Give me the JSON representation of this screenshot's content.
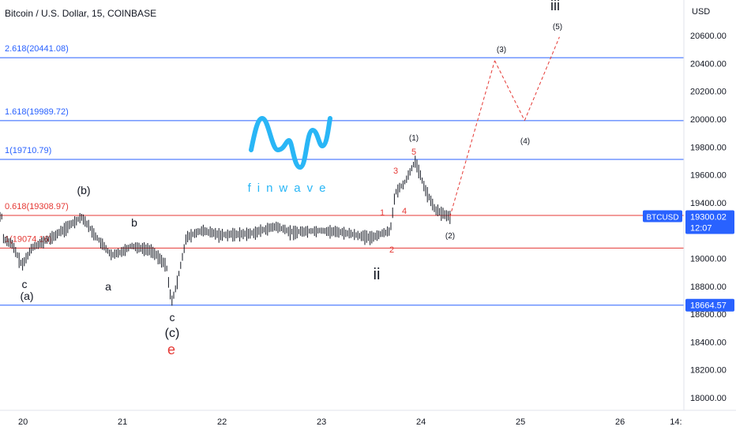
{
  "header": {
    "title": "Bitcoin / U.S. Dollar, 15, COINBASE"
  },
  "axis": {
    "currency": "USD",
    "y_ticks": [
      "20600.00",
      "20400.00",
      "20200.00",
      "20000.00",
      "19800.00",
      "19600.00",
      "19400.00",
      "19000.00",
      "18800.00",
      "18600.00",
      "18400.00",
      "18200.00",
      "18000.00"
    ],
    "x_ticks": [
      "20",
      "21",
      "22",
      "23",
      "24",
      "25",
      "26",
      "14:"
    ]
  },
  "price_tag": {
    "symbol": "BTCUSD",
    "price": "19300.02",
    "countdown": "12:07"
  },
  "level_tag": {
    "value": "18664.57"
  },
  "fib_levels": [
    {
      "label": "2.618(20441.08)",
      "value": 20441.08,
      "color": "#2962ff"
    },
    {
      "label": "1.618(19989.72)",
      "value": 19989.72,
      "color": "#2962ff"
    },
    {
      "label": "1(19710.79)",
      "value": 19710.79,
      "color": "#2962ff"
    },
    {
      "label": "0.618(19308.97)",
      "value": 19308.97,
      "color": "#e53935"
    },
    {
      "label": "1(19074.16)",
      "value": 19074.16,
      "color": "#e53935"
    }
  ],
  "wave_labels": {
    "b_paren": "(b)",
    "b": "b",
    "a": "a",
    "c_left": "c",
    "a_paren": "(a)",
    "c_mid": "c",
    "c_paren": "(c)",
    "e": "e",
    "ii": "ii",
    "iii": "iii",
    "w1_paren": "(1)",
    "w2_paren": "(2)",
    "w3_paren": "(3)",
    "w4_paren": "(4)",
    "w5_paren": "(5)",
    "n1": "1",
    "n2": "2",
    "n3": "3",
    "n4": "4",
    "n5": "5"
  },
  "logo": {
    "text": "finwave"
  },
  "colors": {
    "blue": "#2962ff",
    "red": "#e53935",
    "candle": "#131722",
    "projection": "#e53935"
  },
  "chart_data": {
    "type": "line",
    "title": "Bitcoin / U.S. Dollar, 15, COINBASE",
    "xlabel": "",
    "ylabel": "USD",
    "ylim": [
      17900,
      20900
    ],
    "x_range_days": [
      19.8,
      26.55
    ],
    "series": [
      {
        "values": [
          {
            "x": 19.8,
            "y": 19150
          },
          {
            "x": 19.9,
            "y": 19100
          },
          {
            "x": 20.0,
            "y": 18950
          },
          {
            "x": 20.1,
            "y": 19080
          },
          {
            "x": 20.3,
            "y": 19150
          },
          {
            "x": 20.5,
            "y": 19250
          },
          {
            "x": 20.6,
            "y": 19300
          },
          {
            "x": 20.75,
            "y": 19150
          },
          {
            "x": 20.9,
            "y": 19020
          },
          {
            "x": 21.0,
            "y": 19050
          },
          {
            "x": 21.1,
            "y": 19090
          },
          {
            "x": 21.3,
            "y": 19060
          },
          {
            "x": 21.45,
            "y": 18950
          },
          {
            "x": 21.5,
            "y": 18680
          },
          {
            "x": 21.55,
            "y": 18800
          },
          {
            "x": 21.65,
            "y": 19150
          },
          {
            "x": 21.8,
            "y": 19200
          },
          {
            "x": 22.0,
            "y": 19170
          },
          {
            "x": 22.3,
            "y": 19180
          },
          {
            "x": 22.55,
            "y": 19230
          },
          {
            "x": 22.7,
            "y": 19190
          },
          {
            "x": 23.0,
            "y": 19200
          },
          {
            "x": 23.2,
            "y": 19190
          },
          {
            "x": 23.5,
            "y": 19150
          },
          {
            "x": 23.7,
            "y": 19200
          },
          {
            "x": 23.75,
            "y": 19470
          },
          {
            "x": 23.85,
            "y": 19550
          },
          {
            "x": 23.95,
            "y": 19700
          },
          {
            "x": 24.05,
            "y": 19500
          },
          {
            "x": 24.15,
            "y": 19350
          },
          {
            "x": 24.3,
            "y": 19300
          }
        ]
      },
      {
        "name": "projection",
        "values": [
          {
            "x": 24.3,
            "y": 19300
          },
          {
            "x": 24.75,
            "y": 20420
          },
          {
            "x": 25.05,
            "y": 19990
          },
          {
            "x": 25.4,
            "y": 20590
          }
        ]
      }
    ],
    "horizontal_levels": [
      20441.08,
      19989.72,
      19710.79,
      19308.97,
      19074.16,
      18664.57
    ]
  }
}
